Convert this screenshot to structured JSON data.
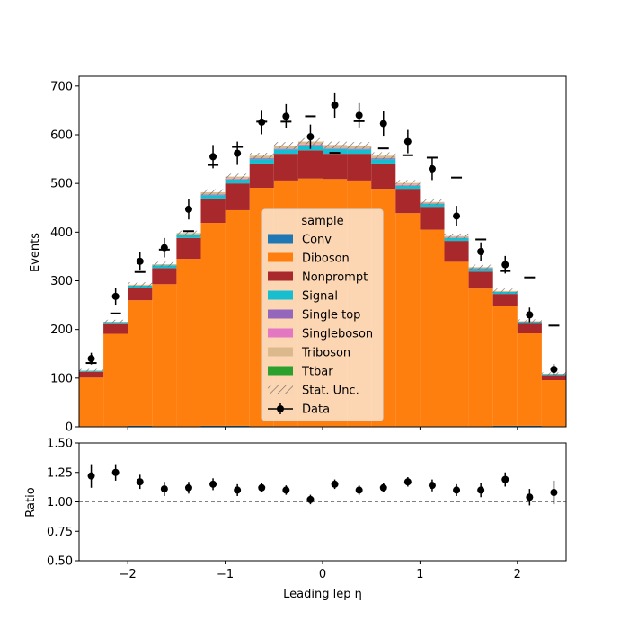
{
  "chart_data": [
    {
      "type": "bar",
      "stacked": true,
      "x_bin_edges": [
        -2.5,
        -2.25,
        -2.0,
        -1.75,
        -1.5,
        -1.25,
        -1.0,
        -0.75,
        -0.5,
        -0.25,
        0.0,
        0.25,
        0.5,
        0.75,
        1.0,
        1.25,
        1.5,
        1.75,
        2.0,
        2.25,
        2.5
      ],
      "xlim": [
        -2.5,
        2.5
      ],
      "ylim": [
        0,
        720
      ],
      "x_ticks": [
        -2,
        -1,
        0,
        1,
        2
      ],
      "x_tick_labels": [
        "−2",
        "−1",
        "0",
        "1",
        "2"
      ],
      "y_ticks": [
        0,
        100,
        200,
        300,
        400,
        500,
        600,
        700
      ],
      "y_tick_labels": [
        "0",
        "100",
        "200",
        "300",
        "400",
        "500",
        "600",
        "700"
      ],
      "ylabel": "Events",
      "series": [
        {
          "name": "Conv",
          "color": "#1f77b4",
          "values": [
            1,
            1,
            2,
            1,
            1,
            2,
            2,
            1,
            1,
            1,
            1,
            1,
            1,
            1,
            1,
            1,
            1,
            2,
            2,
            1
          ]
        },
        {
          "name": "Diboson",
          "color": "#ff7f0e",
          "values": [
            100,
            190,
            258,
            292,
            344,
            417,
            443,
            490,
            505,
            509,
            508,
            505,
            488,
            438,
            404,
            338,
            283,
            246,
            190,
            95
          ]
        },
        {
          "name": "Nonprompt",
          "color": "#a9282c",
          "values": [
            12,
            20,
            25,
            33,
            43,
            50,
            55,
            50,
            55,
            58,
            52,
            55,
            52,
            50,
            47,
            43,
            35,
            25,
            20,
            10
          ]
        },
        {
          "name": "Signal",
          "color": "#17becf",
          "values": [
            2,
            4,
            5,
            6,
            6,
            7,
            8,
            9,
            9,
            10,
            10,
            9,
            9,
            6,
            6,
            6,
            6,
            4,
            4,
            2
          ]
        },
        {
          "name": "Single top",
          "color": "#9467bd",
          "values": [
            0,
            0,
            0,
            0,
            1,
            1,
            1,
            1,
            1,
            1,
            1,
            1,
            1,
            1,
            1,
            1,
            1,
            0,
            0,
            0
          ]
        },
        {
          "name": "Singleboson",
          "color": "#e377c2",
          "values": [
            0,
            0,
            0,
            0,
            0,
            1,
            1,
            1,
            1,
            1,
            1,
            1,
            1,
            1,
            0,
            0,
            0,
            0,
            0,
            0
          ]
        },
        {
          "name": "Triboson",
          "color": "#dbb98c",
          "values": [
            1,
            1,
            2,
            2,
            3,
            4,
            4,
            5,
            6,
            6,
            6,
            6,
            5,
            4,
            3,
            3,
            2,
            2,
            1,
            1
          ]
        },
        {
          "name": "Ttbar",
          "color": "#2ca02c",
          "values": [
            0,
            0,
            0,
            0,
            0,
            0,
            0,
            0,
            0,
            0,
            0,
            0,
            0,
            0,
            0,
            0,
            0,
            0,
            0,
            0
          ]
        }
      ],
      "stat_unc": {
        "name": "Stat. Unc.",
        "values": [
          3,
          4,
          5,
          5,
          5,
          6,
          6,
          6,
          7,
          7,
          7,
          7,
          7,
          6,
          6,
          5,
          5,
          5,
          4,
          3
        ]
      },
      "alt_prediction": [
        131,
        233,
        318,
        364,
        402,
        538,
        575,
        627,
        627,
        638,
        563,
        628,
        572,
        558,
        553,
        512,
        385,
        320,
        307,
        208
      ],
      "data": {
        "name": "Data",
        "x": [
          -2.375,
          -2.125,
          -1.875,
          -1.625,
          -1.375,
          -1.125,
          -0.875,
          -0.625,
          -0.375,
          -0.125,
          0.125,
          0.375,
          0.625,
          0.875,
          1.125,
          1.375,
          1.625,
          1.875,
          2.125,
          2.375
        ],
        "y": [
          140,
          268,
          340,
          368,
          447,
          555,
          562,
          626,
          638,
          596,
          661,
          640,
          623,
          586,
          530,
          433,
          360,
          333,
          230,
          118
        ],
        "err": [
          12,
          17,
          19,
          20,
          21,
          24,
          24,
          25,
          25,
          25,
          26,
          25,
          25,
          24,
          23,
          21,
          19,
          18,
          15,
          11
        ]
      },
      "legend": {
        "title": "sample",
        "location": "center"
      }
    },
    {
      "type": "scatter",
      "x": [
        -2.375,
        -2.125,
        -1.875,
        -1.625,
        -1.375,
        -1.125,
        -0.875,
        -0.625,
        -0.375,
        -0.125,
        0.125,
        0.375,
        0.625,
        0.875,
        1.125,
        1.375,
        1.625,
        1.875,
        2.125,
        2.375
      ],
      "y": [
        1.22,
        1.25,
        1.17,
        1.11,
        1.12,
        1.15,
        1.1,
        1.12,
        1.1,
        1.02,
        1.15,
        1.1,
        1.12,
        1.17,
        1.14,
        1.1,
        1.1,
        1.19,
        1.04,
        1.08
      ],
      "err": [
        0.1,
        0.07,
        0.06,
        0.06,
        0.05,
        0.05,
        0.05,
        0.04,
        0.04,
        0.04,
        0.04,
        0.04,
        0.04,
        0.04,
        0.05,
        0.05,
        0.06,
        0.06,
        0.07,
        0.1
      ],
      "xlim": [
        -2.5,
        2.5
      ],
      "ylim": [
        0.5,
        1.5
      ],
      "reference_line": 1.0,
      "x_ticks": [
        -2,
        -1,
        0,
        1,
        2
      ],
      "x_tick_labels": [
        "−2",
        "−1",
        "0",
        "1",
        "2"
      ],
      "y_ticks": [
        0.5,
        0.75,
        1.0,
        1.25,
        1.5
      ],
      "y_tick_labels": [
        "0.50",
        "0.75",
        "1.00",
        "1.25",
        "1.50"
      ],
      "ylabel": "Ratio",
      "xlabel": "Leading lep η"
    }
  ]
}
